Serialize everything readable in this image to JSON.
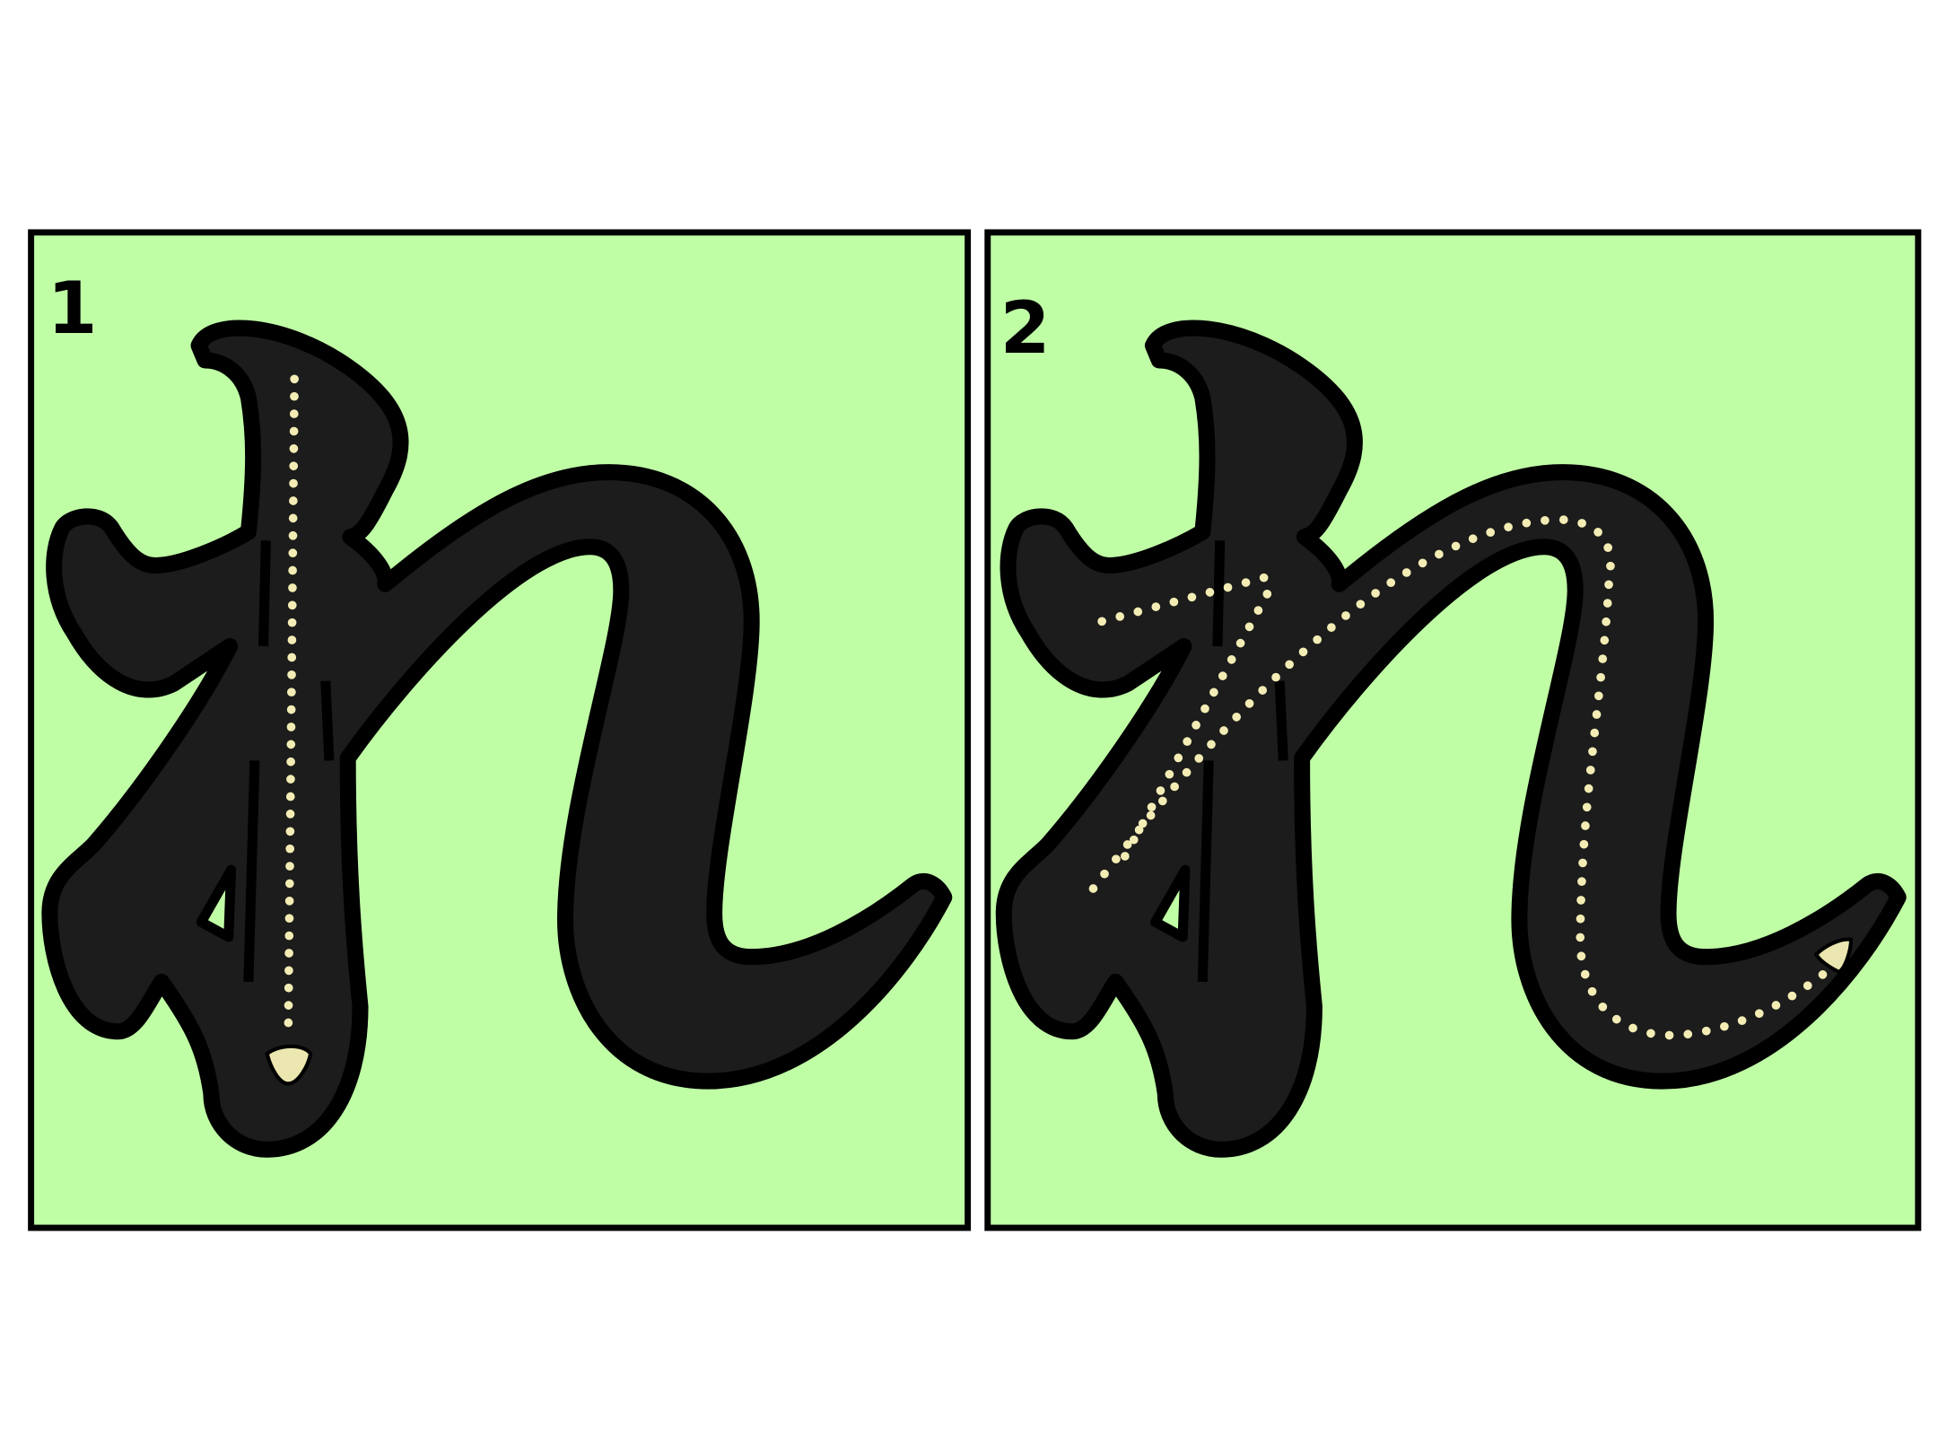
{
  "panels": [
    {
      "step": "1"
    },
    {
      "step": "2"
    }
  ]
}
